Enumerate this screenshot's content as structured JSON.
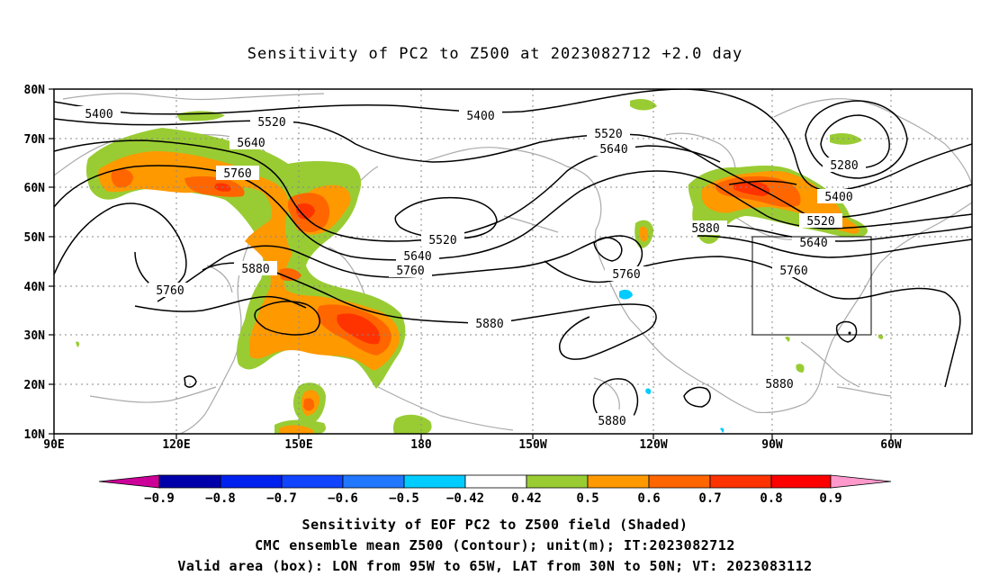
{
  "title": "Sensitivity of PC2 to Z500 at 2023082712 +2.0 day",
  "map": {
    "lat_labels": [
      "80N",
      "70N",
      "60N",
      "50N",
      "40N",
      "30N",
      "20N",
      "10N"
    ],
    "lon_labels": [
      "90E",
      "120E",
      "150E",
      "180",
      "150W",
      "120W",
      "90W",
      "60W"
    ],
    "contour_labels": [
      "5400",
      "5400",
      "5520",
      "5640",
      "5760",
      "5760",
      "5880",
      "5520",
      "5640",
      "5760",
      "5880",
      "5760",
      "5520",
      "5640",
      "5880",
      "5880",
      "5400",
      "5520",
      "5640",
      "5760",
      "5280",
      "5880"
    ],
    "box_area": {
      "lon": [
        "95W",
        "65W"
      ],
      "lat": [
        "30N",
        "50N"
      ]
    },
    "colors": {
      "green": "#99cc33",
      "orange": "#ff9900",
      "dark_orange": "#ff6600",
      "red_orange": "#ff3300",
      "cyan": "#00ccff"
    }
  },
  "colorbar": {
    "labels": [
      "−0.9",
      "−0.8",
      "−0.7",
      "−0.6",
      "−0.5",
      "−0.42",
      "0.42",
      "0.5",
      "0.6",
      "0.7",
      "0.8",
      "0.9"
    ],
    "colors": [
      "#cc0099",
      "#0000aa",
      "#0022ee",
      "#1144ff",
      "#2277ff",
      "#00ccff",
      "#ffffff",
      "#99cc33",
      "#ff9900",
      "#ff6600",
      "#ff3300",
      "#ff0000",
      "#ff99cc"
    ]
  },
  "captions": [
    "Sensitivity of EOF PC2 to Z500 field (Shaded)",
    "CMC ensemble mean Z500 (Contour); unit(m); IT:2023082712",
    "Valid area (box): LON from 95W to 65W, LAT from 30N to 50N; VT: 2023083112"
  ]
}
